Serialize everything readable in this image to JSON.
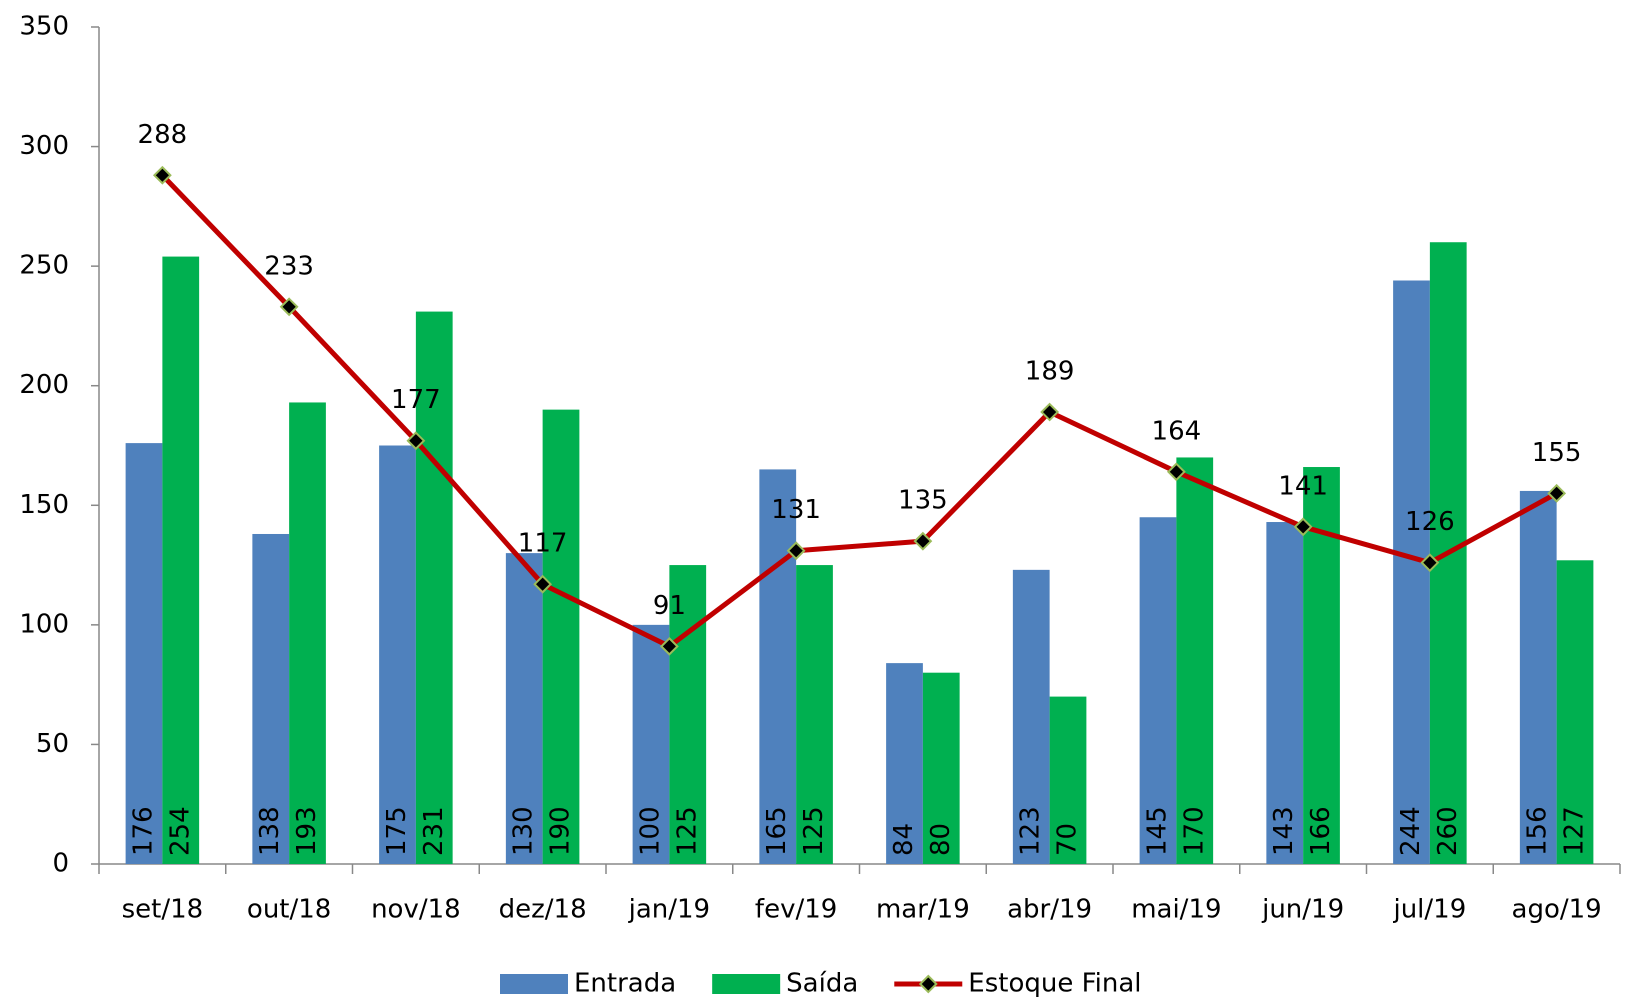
{
  "chart_data": {
    "type": "bar",
    "categories": [
      "set/18",
      "out/18",
      "nov/18",
      "dez/18",
      "jan/19",
      "fev/19",
      "mar/19",
      "abr/19",
      "mai/19",
      "jun/19",
      "jul/19",
      "ago/19"
    ],
    "series": [
      {
        "name": "Entrada",
        "type": "bar",
        "color": "#4f81bd",
        "values": [
          176,
          138,
          175,
          130,
          100,
          165,
          84,
          123,
          145,
          143,
          244,
          156
        ]
      },
      {
        "name": "Saída",
        "type": "bar",
        "color": "#00b050",
        "values": [
          254,
          193,
          231,
          190,
          125,
          125,
          80,
          70,
          170,
          166,
          260,
          127
        ]
      },
      {
        "name": "Estoque Final",
        "type": "line",
        "color": "#c00000",
        "values": [
          288,
          233,
          177,
          117,
          91,
          131,
          135,
          189,
          164,
          141,
          126,
          155
        ]
      }
    ],
    "ylim": [
      0,
      350
    ],
    "yticks": [
      0,
      50,
      100,
      150,
      200,
      250,
      300,
      350
    ],
    "grid": false,
    "legend": "bottom"
  }
}
